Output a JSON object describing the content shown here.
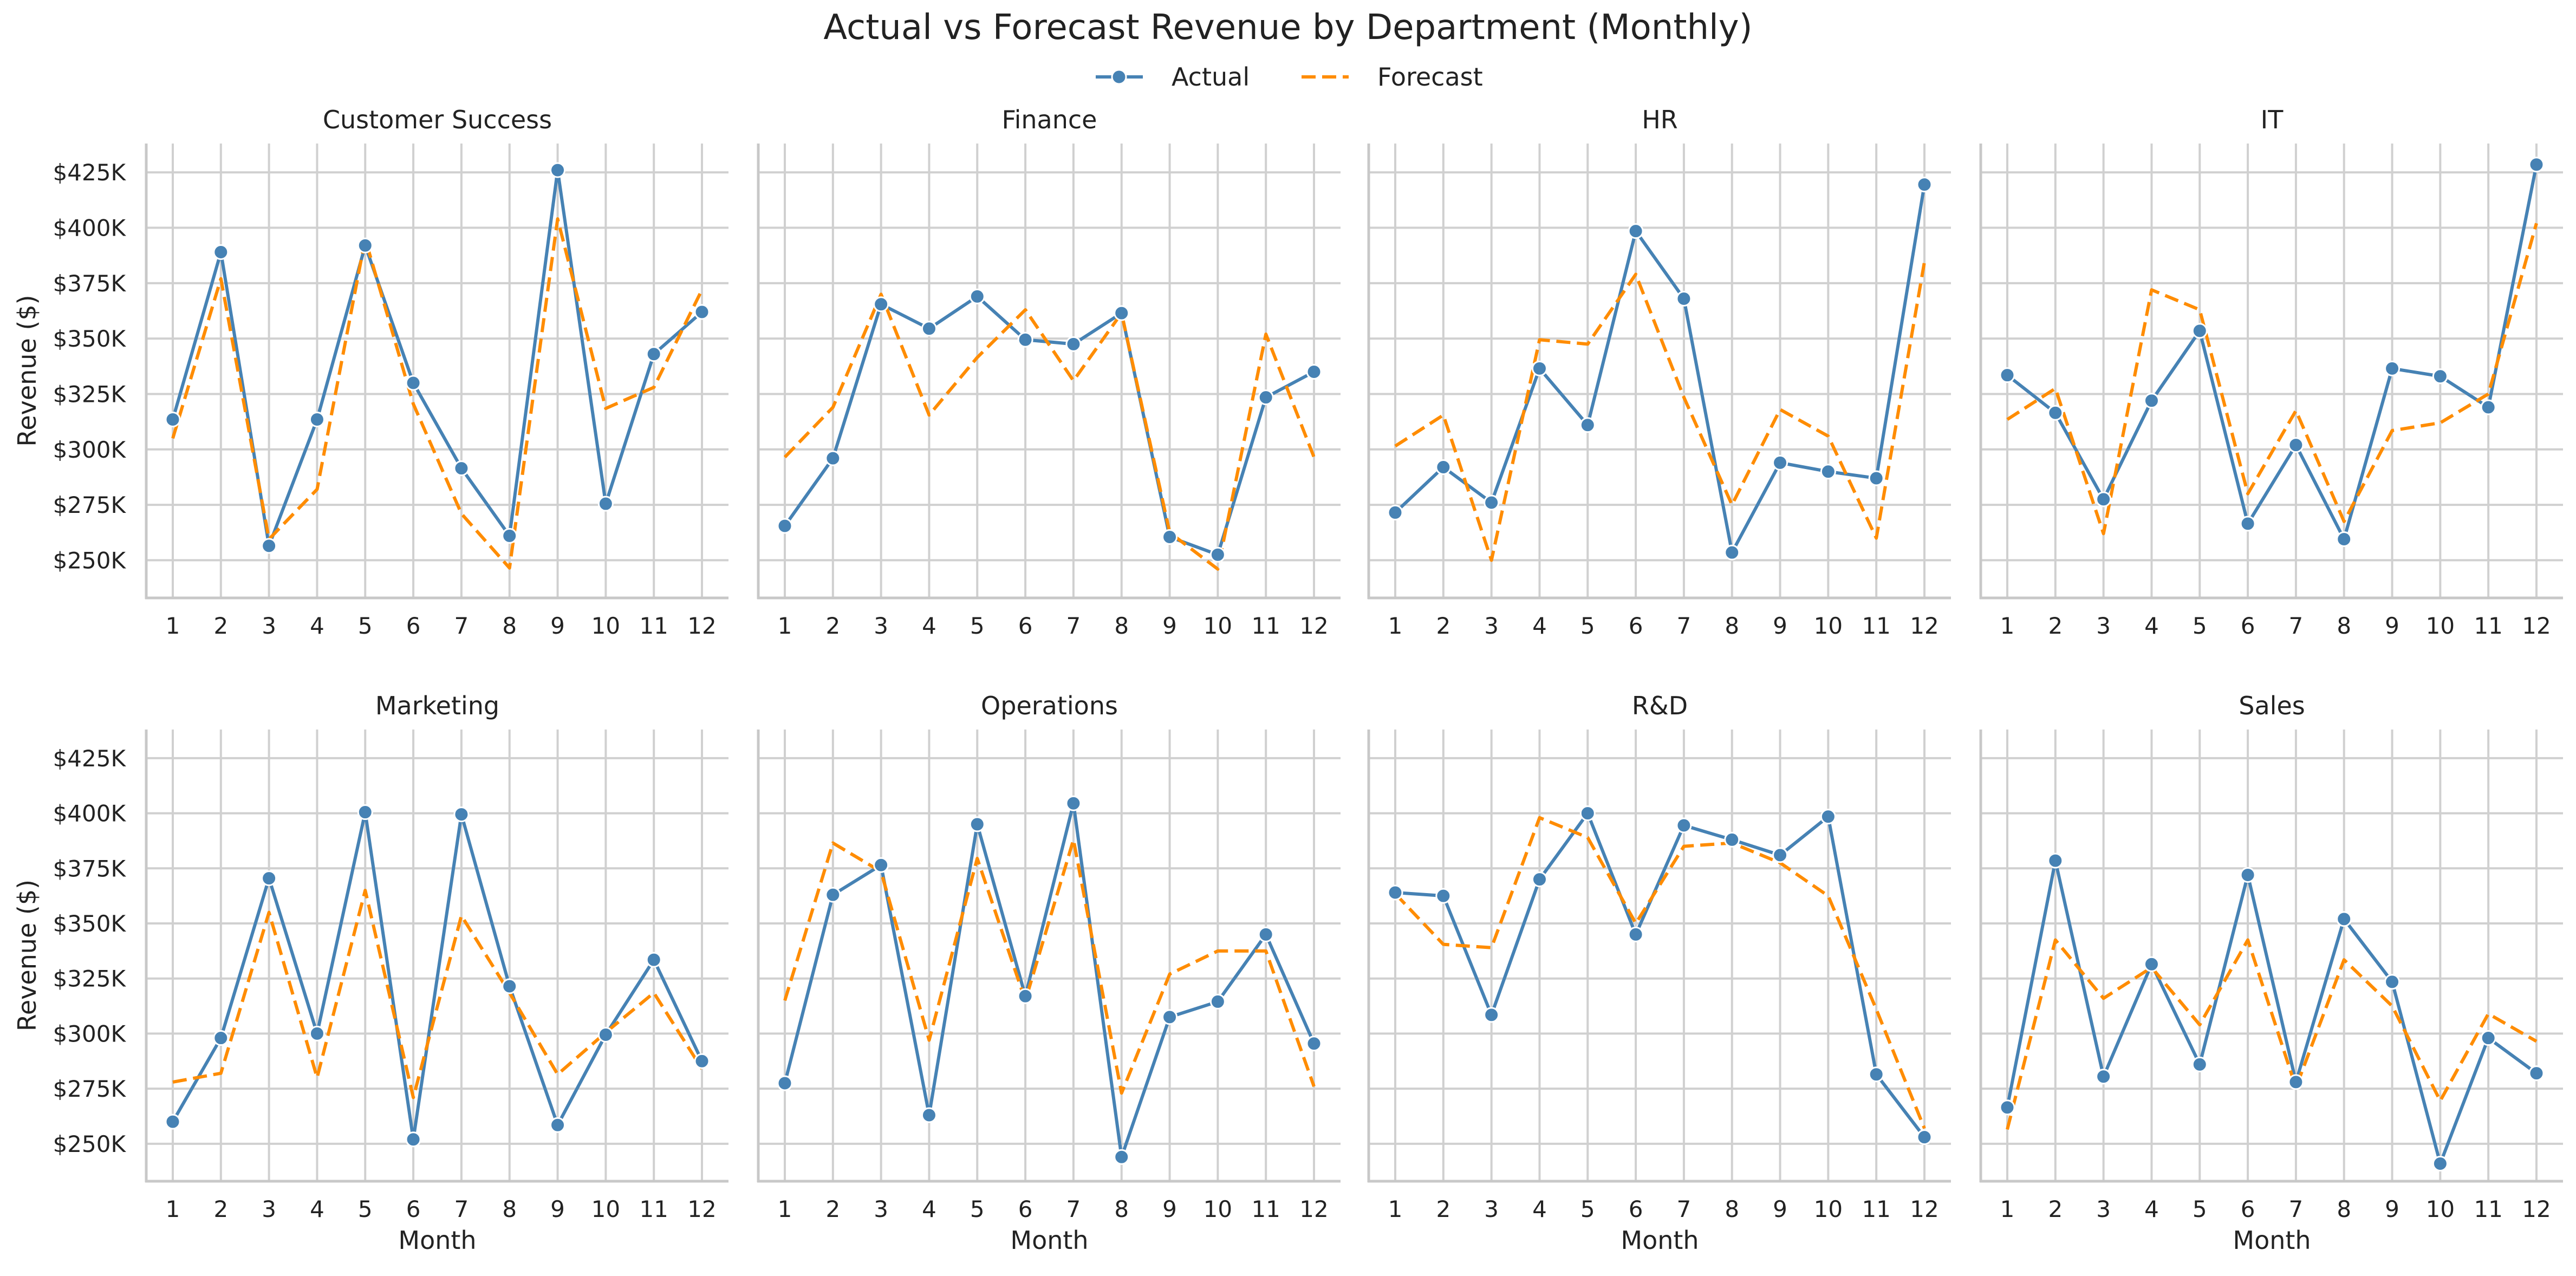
{
  "chart_data": {
    "type": "line",
    "title": "Actual vs Forecast Revenue by Department (Monthly)",
    "xlabel": "Month",
    "ylabel": "Revenue ($)",
    "x": [
      1,
      2,
      3,
      4,
      5,
      6,
      7,
      8,
      9,
      10,
      11,
      12
    ],
    "ylim": [
      233000,
      438000
    ],
    "yticks": [
      250000,
      275000,
      300000,
      325000,
      350000,
      375000,
      400000,
      425000
    ],
    "ytick_labels": [
      "$250K",
      "$275K",
      "$300K",
      "$325K",
      "$350K",
      "$375K",
      "$400K",
      "$425K"
    ],
    "grid": true,
    "legend_position": "top-center",
    "legend": [
      {
        "name": "Actual",
        "color": "#4682b4",
        "style": "solid-marker"
      },
      {
        "name": "Forecast",
        "color": "#ff8c00",
        "style": "dashed"
      }
    ],
    "panels": [
      {
        "title": "Customer Success",
        "series": [
          {
            "name": "Actual",
            "values": [
              313500,
              389000,
              256500,
              313500,
              392000,
              330000,
              291500,
              261000,
              426000,
              275500,
              343000,
              362000
            ]
          },
          {
            "name": "Forecast",
            "values": [
              305000,
              377000,
              259500,
              282000,
              395000,
              320500,
              271000,
              246500,
              404000,
              318500,
              328000,
              372000
            ]
          }
        ]
      },
      {
        "title": "Finance",
        "series": [
          {
            "name": "Actual",
            "values": [
              265500,
              296000,
              365500,
              354500,
              369000,
              349500,
              347500,
              361500,
              260500,
              252500,
              323500,
              335000
            ]
          },
          {
            "name": "Forecast",
            "values": [
              296500,
              319000,
              370000,
              315500,
              341500,
              363000,
              331000,
              361500,
              262500,
              246000,
              352000,
              296500
            ]
          }
        ]
      },
      {
        "title": "HR",
        "series": [
          {
            "name": "Actual",
            "values": [
              271500,
              292000,
              276000,
              336500,
              311000,
              398500,
              368000,
              253500,
              294000,
              290000,
              287000,
              419500
            ]
          },
          {
            "name": "Forecast",
            "values": [
              301500,
              315500,
              250000,
              349500,
              347500,
              379000,
              323500,
              275000,
              318000,
              306000,
              260000,
              384500
            ]
          }
        ]
      },
      {
        "title": "IT",
        "series": [
          {
            "name": "Actual",
            "values": [
              333500,
              316500,
              277500,
              322000,
              353500,
              266500,
              302000,
              259500,
              336500,
              333000,
              319000,
              428500
            ]
          },
          {
            "name": "Forecast",
            "values": [
              313500,
              327500,
              262000,
              372000,
              363000,
              280000,
              317500,
              267500,
              308500,
              312000,
              325000,
              402000
            ]
          }
        ]
      },
      {
        "title": "Marketing",
        "series": [
          {
            "name": "Actual",
            "values": [
              260000,
              298000,
              370500,
              300000,
              400500,
              252000,
              399500,
              321500,
              258500,
              299500,
              333500,
              287500
            ]
          },
          {
            "name": "Forecast",
            "values": [
              278000,
              282000,
              355000,
              280000,
              365000,
              271000,
              353500,
              318500,
              281500,
              300500,
              318500,
              284000
            ]
          }
        ]
      },
      {
        "title": "Operations",
        "series": [
          {
            "name": "Actual",
            "values": [
              277500,
              363000,
              376500,
              263000,
              395000,
              317000,
              404500,
              244000,
              307500,
              314500,
              345000,
              295500
            ]
          },
          {
            "name": "Forecast",
            "values": [
              315000,
              386500,
              373500,
              297000,
              379500,
              315000,
              388000,
              273000,
              327000,
              337500,
              337500,
              276000
            ]
          }
        ]
      },
      {
        "title": "R&D",
        "series": [
          {
            "name": "Actual",
            "values": [
              364000,
              362500,
              308500,
              370000,
              400000,
              345000,
              394500,
              388000,
              381000,
              398500,
              281500,
              253000
            ]
          },
          {
            "name": "Forecast",
            "values": [
              363500,
              340500,
              339000,
              398000,
              389000,
              350000,
              385000,
              386500,
              377500,
              362500,
              311000,
              257000
            ]
          }
        ]
      },
      {
        "title": "Sales",
        "series": [
          {
            "name": "Actual",
            "values": [
              266500,
              378500,
              280500,
              331500,
              286000,
              372000,
              278000,
              352000,
              323500,
              241000,
              298000,
              282000
            ]
          },
          {
            "name": "Forecast",
            "values": [
              256500,
              342500,
              316000,
              330000,
              304000,
              342500,
              275500,
              333500,
              312500,
              269500,
              309000,
              296500
            ]
          }
        ]
      }
    ]
  }
}
